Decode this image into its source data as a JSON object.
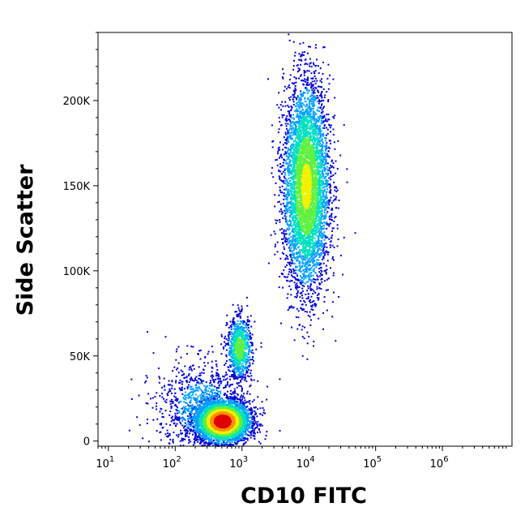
{
  "chart_data": {
    "type": "scatter",
    "title": "",
    "xlabel": "CD10 FITC",
    "ylabel": "Side Scatter",
    "x_scale": "log",
    "xlim": [
      7,
      11000000
    ],
    "ylim": [
      -3000,
      240000
    ],
    "x_ticks": [
      {
        "base": "10",
        "exp": "1",
        "value": 10
      },
      {
        "base": "10",
        "exp": "2",
        "value": 100
      },
      {
        "base": "10",
        "exp": "3",
        "value": 1000
      },
      {
        "base": "10",
        "exp": "4",
        "value": 10000
      },
      {
        "base": "10",
        "exp": "5",
        "value": 100000
      },
      {
        "base": "10",
        "exp": "6",
        "value": 1000000
      }
    ],
    "y_ticks": [
      {
        "label": "0",
        "value": 0
      },
      {
        "label": "50K",
        "value": 50000
      },
      {
        "label": "100K",
        "value": 100000
      },
      {
        "label": "150K",
        "value": 150000
      },
      {
        "label": "200K",
        "value": 200000
      }
    ],
    "grid": false,
    "legend": "none",
    "colormap": [
      "#0000d0",
      "#00a0ff",
      "#00e0c0",
      "#60f040",
      "#f0f000",
      "#ff9000",
      "#e00000"
    ],
    "populations": [
      {
        "name": "",
        "x_center": 500,
        "y_center": 12000,
        "x_sd_decades": 0.2,
        "y_sd": 6000,
        "count": 4200,
        "density_scale": 1.0
      },
      {
        "name": "",
        "x_center": 900,
        "y_center": 55000,
        "x_sd_decades": 0.09,
        "y_sd": 9000,
        "count": 900,
        "density_scale": 0.45
      },
      {
        "name": "",
        "x_center": 9000,
        "y_center": 150000,
        "x_sd_decades": 0.17,
        "y_sd": 30000,
        "count": 5200,
        "density_scale": 0.55
      },
      {
        "name": "",
        "x_center": 250,
        "y_center": 20000,
        "x_sd_decades": 0.35,
        "y_sd": 14000,
        "count": 1100,
        "density_scale": 0.15
      }
    ]
  }
}
